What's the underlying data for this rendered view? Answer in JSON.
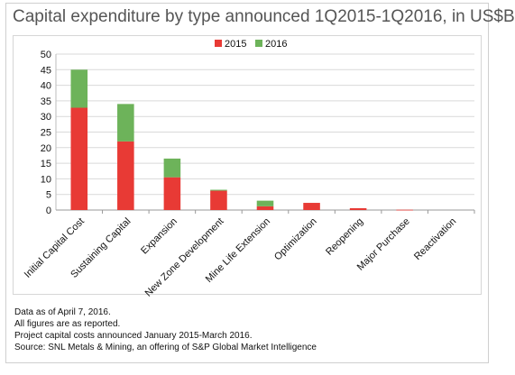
{
  "chart_data": {
    "type": "bar",
    "stacked": true,
    "title": "Capital expenditure by type announced 1Q2015-1Q2016, in US$B",
    "categories": [
      "Initial Capital Cost",
      "Sustaining Capital",
      "Expansion",
      "New Zone Development",
      "Mine Life Extension",
      "Optimization",
      "Reopening",
      "Major Purchase",
      "Reactivation"
    ],
    "series": [
      {
        "name": "2015",
        "color": "#e83a35",
        "values": [
          32.8,
          22.0,
          10.5,
          6.2,
          1.2,
          2.3,
          0.6,
          0.1,
          0.0
        ]
      },
      {
        "name": "2016",
        "color": "#6db35a",
        "values": [
          12.2,
          12.0,
          6.0,
          0.3,
          1.8,
          0.0,
          0.0,
          0.0,
          0.0
        ]
      }
    ],
    "ylim": [
      0,
      50
    ],
    "yticks": [
      0,
      5,
      10,
      15,
      20,
      25,
      30,
      35,
      40,
      45,
      50
    ],
    "grid": true,
    "legend": "top-center"
  },
  "notes": [
    "Data as of April 7, 2016.",
    "All figures are as reported.",
    "Project capital costs announced January 2015-March 2016.",
    "Source: SNL Metals & Mining, an offering of S&P Global Market Intelligence"
  ]
}
